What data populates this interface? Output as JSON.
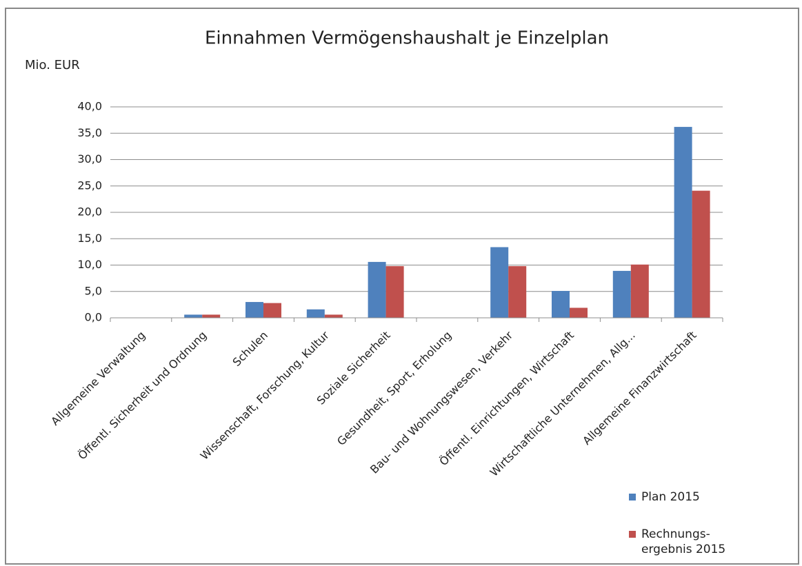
{
  "chart_data": {
    "type": "bar",
    "title": "Einnahmen Vermögenshaushalt je Einzelplan",
    "y_label": "Mio. EUR",
    "categories": [
      "Allgemeine Verwaltung",
      "Öffentl. Sicherheit und Ordnung",
      "Schulen",
      "Wissenschaft, Forschung, Kultur",
      "Soziale Sicherheit",
      "Gesundheit, Sport, Erholung",
      "Bau- und Wohnungswesen, Verkehr",
      "Öffentl. Einrichtungen, Wirtschaft",
      "Wirtschaftliche Unternehmen, Allg...",
      "Allgemeine Finanzwirtschaft"
    ],
    "series": [
      {
        "name": "Plan  2015",
        "color": "#4f81bd",
        "values": [
          0,
          0.6,
          3.0,
          1.6,
          10.6,
          0,
          13.4,
          5.1,
          8.9,
          36.2
        ]
      },
      {
        "name": "Rechnungs-\nergebnis 2015",
        "color": "#c0504d",
        "values": [
          0,
          0.6,
          2.8,
          0.6,
          9.8,
          0,
          9.8,
          1.9,
          10.1,
          24.1
        ]
      }
    ],
    "ylim": [
      0,
      40
    ],
    "yticks": [
      {
        "value": 0,
        "label": "0,0"
      },
      {
        "value": 5,
        "label": "5,0"
      },
      {
        "value": 10,
        "label": "10,0"
      },
      {
        "value": 15,
        "label": "15,0"
      },
      {
        "value": 20,
        "label": "20,0"
      },
      {
        "value": 25,
        "label": "25,0"
      },
      {
        "value": 30,
        "label": "30,0"
      },
      {
        "value": 35,
        "label": "35,0"
      },
      {
        "value": 40,
        "label": "40,0"
      }
    ],
    "grid": true,
    "legend": "bottom-right"
  }
}
